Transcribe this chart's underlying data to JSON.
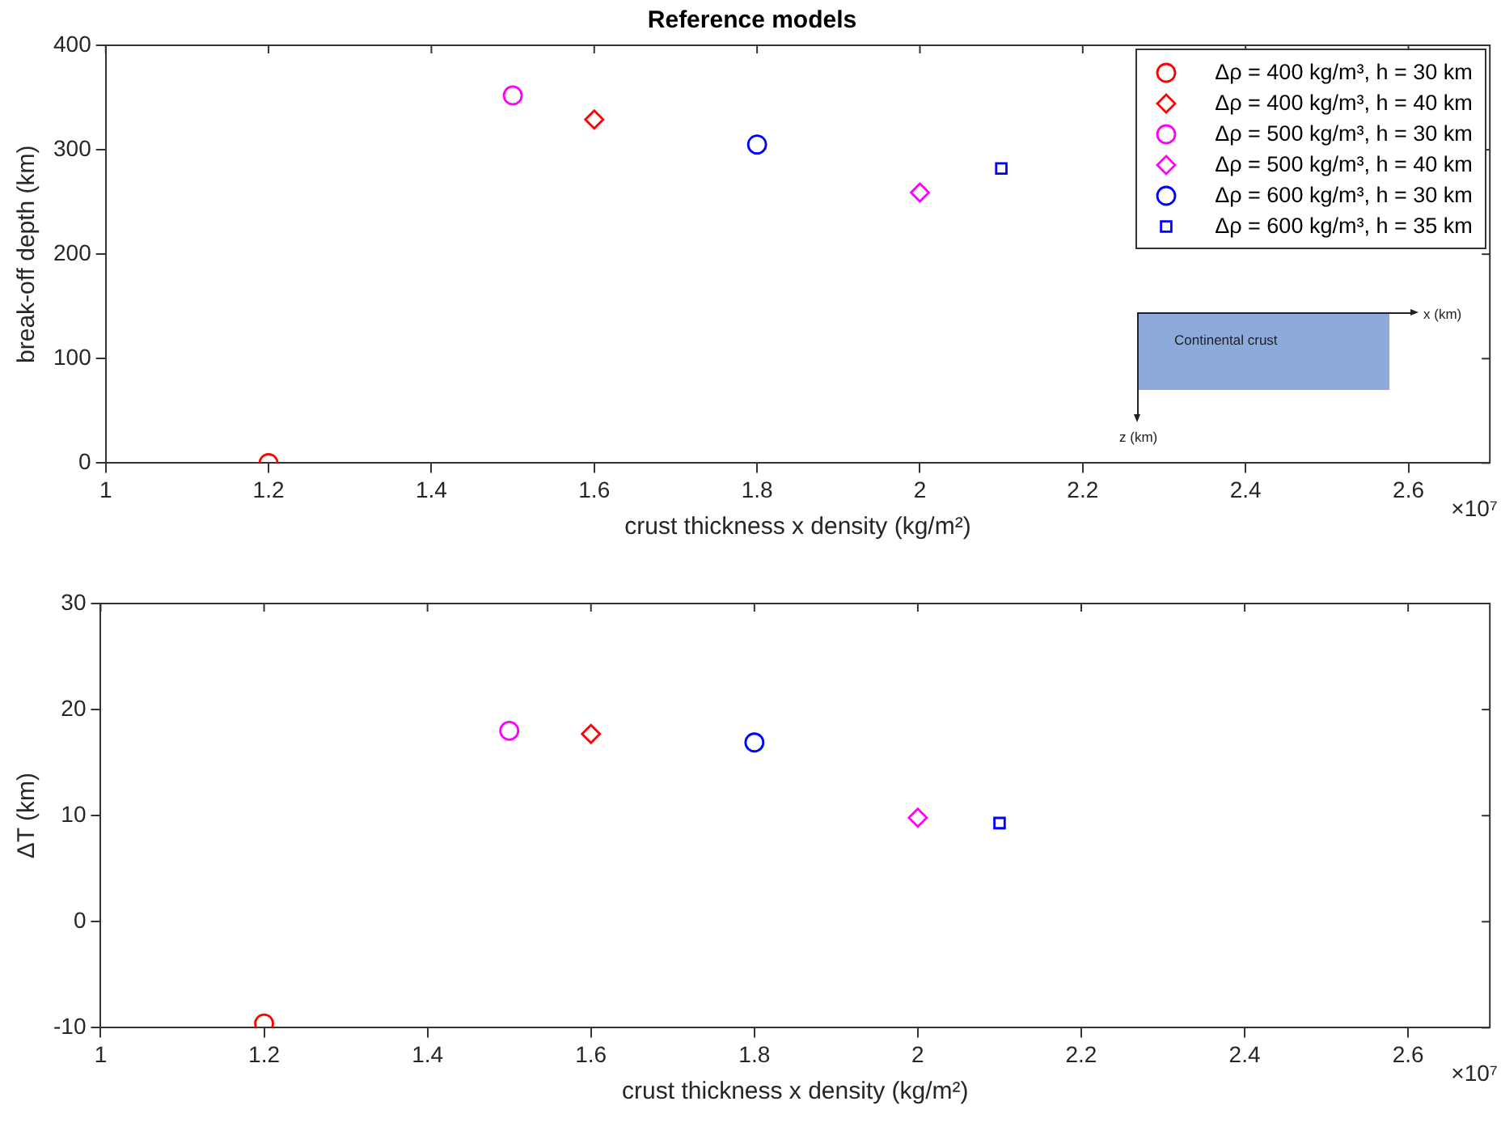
{
  "chart_data": [
    {
      "type": "scatter",
      "title": "Reference models",
      "xlabel": "crust thickness x density (kg/m²)",
      "ylabel": "break-off depth (km)",
      "xlim": [
        1,
        2.7
      ],
      "xticks": [
        1,
        1.2,
        1.4,
        1.6,
        1.8,
        2,
        2.2,
        2.4,
        2.6
      ],
      "ylim": [
        0,
        400
      ],
      "yticks": [
        0,
        100,
        200,
        300,
        400
      ],
      "grid": false,
      "legend": "top right",
      "annotations": [
        "×10⁷",
        "Continental crust",
        "x (km)",
        "z (km)"
      ],
      "series": [
        {
          "name": "Δρ = 400 kg/m³, h = 30 km",
          "color": "#ff0000",
          "marker": "circle",
          "x": [
            1.2
          ],
          "values": [
            0
          ]
        },
        {
          "name": "Δρ = 400 kg/m³, h = 40 km",
          "color": "#ff0000",
          "marker": "diamond",
          "x": [
            1.6
          ],
          "values": [
            329
          ]
        },
        {
          "name": "Δρ = 500 kg/m³, h = 30 km",
          "color": "#ff00ff",
          "marker": "circle",
          "x": [
            1.5
          ],
          "values": [
            352
          ]
        },
        {
          "name": "Δρ = 500 kg/m³, h = 40 km",
          "color": "#ff00ff",
          "marker": "diamond",
          "x": [
            2.0
          ],
          "values": [
            259
          ]
        },
        {
          "name": "Δρ = 600 kg/m³, h = 30 km",
          "color": "#0000ff",
          "marker": "circle",
          "x": [
            1.8
          ],
          "values": [
            305
          ]
        },
        {
          "name": "Δρ = 600 kg/m³, h = 35 km",
          "color": "#0000ff",
          "marker": "square",
          "x": [
            2.1
          ],
          "values": [
            282
          ]
        }
      ]
    },
    {
      "type": "scatter",
      "xlabel": "crust thickness x density (kg/m²)",
      "ylabel": "ΔT (km)",
      "xlim": [
        1,
        2.7
      ],
      "xticks": [
        1,
        1.2,
        1.4,
        1.6,
        1.8,
        2,
        2.2,
        2.4,
        2.6
      ],
      "ylim": [
        -10,
        30
      ],
      "yticks": [
        -10,
        0,
        10,
        20,
        30
      ],
      "grid": false,
      "annotations": [
        "×10⁷"
      ],
      "series": [
        {
          "color": "#ff0000",
          "marker": "circle",
          "x": [
            1.2
          ],
          "values": [
            -9.6
          ]
        },
        {
          "color": "#ff0000",
          "marker": "diamond",
          "x": [
            1.6
          ],
          "values": [
            17.7
          ]
        },
        {
          "color": "#ff00ff",
          "marker": "circle",
          "x": [
            1.5
          ],
          "values": [
            18
          ]
        },
        {
          "color": "#ff00ff",
          "marker": "diamond",
          "x": [
            2.0
          ],
          "values": [
            9.8
          ]
        },
        {
          "color": "#0000ff",
          "marker": "circle",
          "x": [
            1.8
          ],
          "values": [
            16.9
          ]
        },
        {
          "color": "#0000ff",
          "marker": "square",
          "x": [
            2.1
          ],
          "values": [
            9.3
          ]
        }
      ]
    }
  ]
}
